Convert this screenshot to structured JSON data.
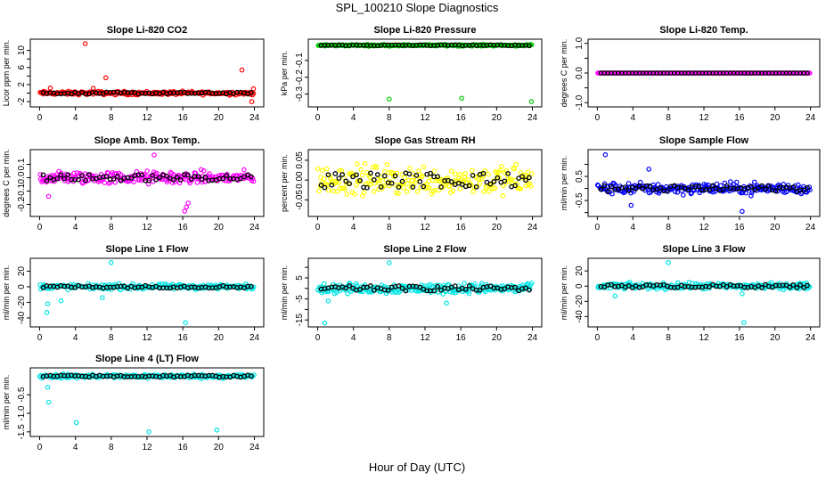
{
  "title": "SPL_100210  Slope Diagnostics",
  "x_caption": "Hour of Day (UTC)",
  "colors": {
    "red": "#ff0000",
    "green": "#00cc00",
    "magenta": "#ff00ff",
    "yellow": "#ffff00",
    "blue": "#0000ff",
    "cyan": "#00e5e5",
    "black": "#000000"
  },
  "chart_data": [
    {
      "type": "scatter",
      "title": "Slope Li-820 CO2",
      "ylabel": "Licor ppm per min.",
      "xlim": [
        0,
        24
      ],
      "ylim": [
        -2.6,
        12
      ],
      "xticks": [
        0,
        4,
        8,
        12,
        16,
        20,
        24
      ],
      "yticks": [
        -2,
        0,
        2,
        4,
        6,
        8,
        10
      ],
      "ytick_labels": [
        "-2",
        "",
        "2",
        "",
        "6",
        "",
        "10"
      ],
      "series_color": "red",
      "base": {
        "mean": 0,
        "amp": 0.6
      },
      "outliers": [
        [
          5.1,
          11.6
        ],
        [
          7.4,
          3.6
        ],
        [
          6.0,
          1.1
        ],
        [
          22.6,
          5.4
        ],
        [
          23.7,
          -2.0
        ],
        [
          23.9,
          1.0
        ],
        [
          1.2,
          1.2
        ]
      ]
    },
    {
      "type": "scatter",
      "title": "Slope Li-820 Pressure",
      "ylabel": "kPa per min.",
      "xlim": [
        0,
        24
      ],
      "ylim": [
        -0.36,
        0.01
      ],
      "xticks": [
        0,
        4,
        8,
        12,
        16,
        20,
        24
      ],
      "yticks": [
        -0.3,
        -0.2,
        -0.1
      ],
      "ytick_labels": [
        "-0.3",
        "-0.2",
        "-0.1"
      ],
      "series_color": "green",
      "base": {
        "mean": -0.01,
        "amp": 0.007
      },
      "outliers": [
        [
          8.0,
          -0.33
        ],
        [
          16.1,
          -0.325
        ],
        [
          23.9,
          -0.345
        ]
      ]
    },
    {
      "type": "scatter",
      "title": "Slope Li-820 Temp.",
      "ylabel": "degrees C per min.",
      "xlim": [
        0,
        24
      ],
      "ylim": [
        -1.05,
        1.05
      ],
      "xticks": [
        0,
        4,
        8,
        12,
        16,
        20,
        24
      ],
      "yticks": [
        -1.0,
        -0.5,
        0.0,
        0.5,
        1.0
      ],
      "ytick_labels": [
        "-1.0",
        "",
        "0.0",
        "",
        "1.0"
      ],
      "series_color": "magenta",
      "base": {
        "mean": 0,
        "amp": 0.0
      },
      "outliers": []
    },
    {
      "type": "scatter",
      "title": "Slope Amb. Box Temp.",
      "ylabel": "degrees C per min.",
      "xlim": [
        0,
        24
      ],
      "ylim": [
        -0.27,
        0.19
      ],
      "xticks": [
        0,
        4,
        8,
        12,
        16,
        20,
        24
      ],
      "yticks": [
        -0.2,
        -0.1,
        0.0,
        0.1
      ],
      "ytick_labels": [
        "-0.2",
        "-0.1",
        "0.0",
        "0.1"
      ],
      "series_color": "magenta",
      "base": {
        "mean": 0.0,
        "amp": 0.07
      },
      "outliers": [
        [
          16.2,
          -0.25
        ],
        [
          16.4,
          -0.22
        ],
        [
          16.6,
          -0.19
        ],
        [
          12.8,
          0.17
        ],
        [
          1.0,
          -0.14
        ]
      ]
    },
    {
      "type": "scatter",
      "title": "Slope Gas Stream RH",
      "ylabel": "percent per min.",
      "xlim": [
        0,
        24
      ],
      "ylim": [
        -0.085,
        0.07
      ],
      "xticks": [
        0,
        4,
        8,
        12,
        16,
        20,
        24
      ],
      "yticks": [
        -0.05,
        0.0,
        0.05
      ],
      "ytick_labels": [
        "-0.05",
        "0.00",
        "0.05"
      ],
      "series_color": "yellow",
      "base": {
        "mean": 0.0,
        "amp": 0.055
      },
      "outliers": []
    },
    {
      "type": "scatter",
      "title": "Slope Sample Flow",
      "ylabel": "ml/min per min.",
      "xlim": [
        0,
        24
      ],
      "ylim": [
        -1.05,
        1.5
      ],
      "xticks": [
        0,
        4,
        8,
        12,
        16,
        20,
        24
      ],
      "yticks": [
        -1.0,
        -0.5,
        0.0,
        0.5,
        1.0
      ],
      "ytick_labels": [
        "",
        "-0.5",
        "",
        "0.5",
        ""
      ],
      "series_color": "blue",
      "base": {
        "mean": 0.0,
        "amp": 0.35
      },
      "outliers": [
        [
          0.9,
          1.4
        ],
        [
          5.8,
          0.8
        ],
        [
          16.3,
          -0.95
        ],
        [
          3.8,
          -0.7
        ]
      ]
    },
    {
      "type": "scatter",
      "title": "Slope Line 1 Flow",
      "ylabel": "ml/min per min.",
      "xlim": [
        0,
        24
      ],
      "ylim": [
        -48,
        33
      ],
      "xticks": [
        0,
        4,
        8,
        12,
        16,
        20,
        24
      ],
      "yticks": [
        -40,
        -20,
        0,
        20
      ],
      "ytick_labels": [
        "-40",
        "-20",
        "0",
        "20"
      ],
      "series_color": "cyan",
      "base": {
        "mean": 0.0,
        "amp": 5
      },
      "outliers": [
        [
          8.0,
          31
        ],
        [
          16.3,
          -46
        ],
        [
          0.9,
          -22
        ],
        [
          0.8,
          -33
        ],
        [
          2.4,
          -18
        ],
        [
          7.0,
          -14
        ]
      ]
    },
    {
      "type": "scatter",
      "title": "Slope Line 2 Flow",
      "ylabel": "ml/min per min.",
      "xlim": [
        0,
        24
      ],
      "ylim": [
        -17,
        13
      ],
      "xticks": [
        0,
        4,
        8,
        12,
        16,
        20,
        24
      ],
      "yticks": [
        -15,
        -10,
        -5,
        0,
        5,
        10
      ],
      "ytick_labels": [
        "-15",
        "",
        "-5",
        "",
        "5",
        ""
      ],
      "series_color": "cyan",
      "base": {
        "mean": 0.0,
        "amp": 3.5
      },
      "outliers": [
        [
          8.0,
          12.2
        ],
        [
          0.8,
          -16.5
        ],
        [
          1.2,
          -6
        ],
        [
          14.4,
          -7
        ]
      ]
    },
    {
      "type": "scatter",
      "title": "Slope Line 3 Flow",
      "ylabel": "ml/min per min.",
      "xlim": [
        0,
        24
      ],
      "ylim": [
        -50,
        33
      ],
      "xticks": [
        0,
        4,
        8,
        12,
        16,
        20,
        24
      ],
      "yticks": [
        -40,
        -20,
        0,
        20
      ],
      "ytick_labels": [
        "-40",
        "-20",
        "0",
        "20"
      ],
      "series_color": "cyan",
      "base": {
        "mean": 0.0,
        "amp": 6
      },
      "outliers": [
        [
          8.0,
          31
        ],
        [
          16.5,
          -48
        ],
        [
          2.0,
          -13
        ],
        [
          16.3,
          -10
        ]
      ]
    },
    {
      "type": "scatter",
      "title": "Slope Line 4 (LT) Flow",
      "ylabel": "ml/min per min.",
      "xlim": [
        0,
        24
      ],
      "ylim": [
        -1.55,
        0.15
      ],
      "xticks": [
        0,
        4,
        8,
        12,
        16,
        20,
        24
      ],
      "yticks": [
        -1.5,
        -1.0,
        -0.5
      ],
      "ytick_labels": [
        "-1.5",
        "-1.0",
        "-0.5"
      ],
      "series_color": "cyan",
      "base": {
        "mean": 0.0,
        "amp": 0.08
      },
      "outliers": [
        [
          1.0,
          -0.7
        ],
        [
          4.1,
          -1.25
        ],
        [
          12.2,
          -1.5
        ],
        [
          19.8,
          -1.45
        ],
        [
          0.9,
          -0.3
        ]
      ]
    }
  ]
}
